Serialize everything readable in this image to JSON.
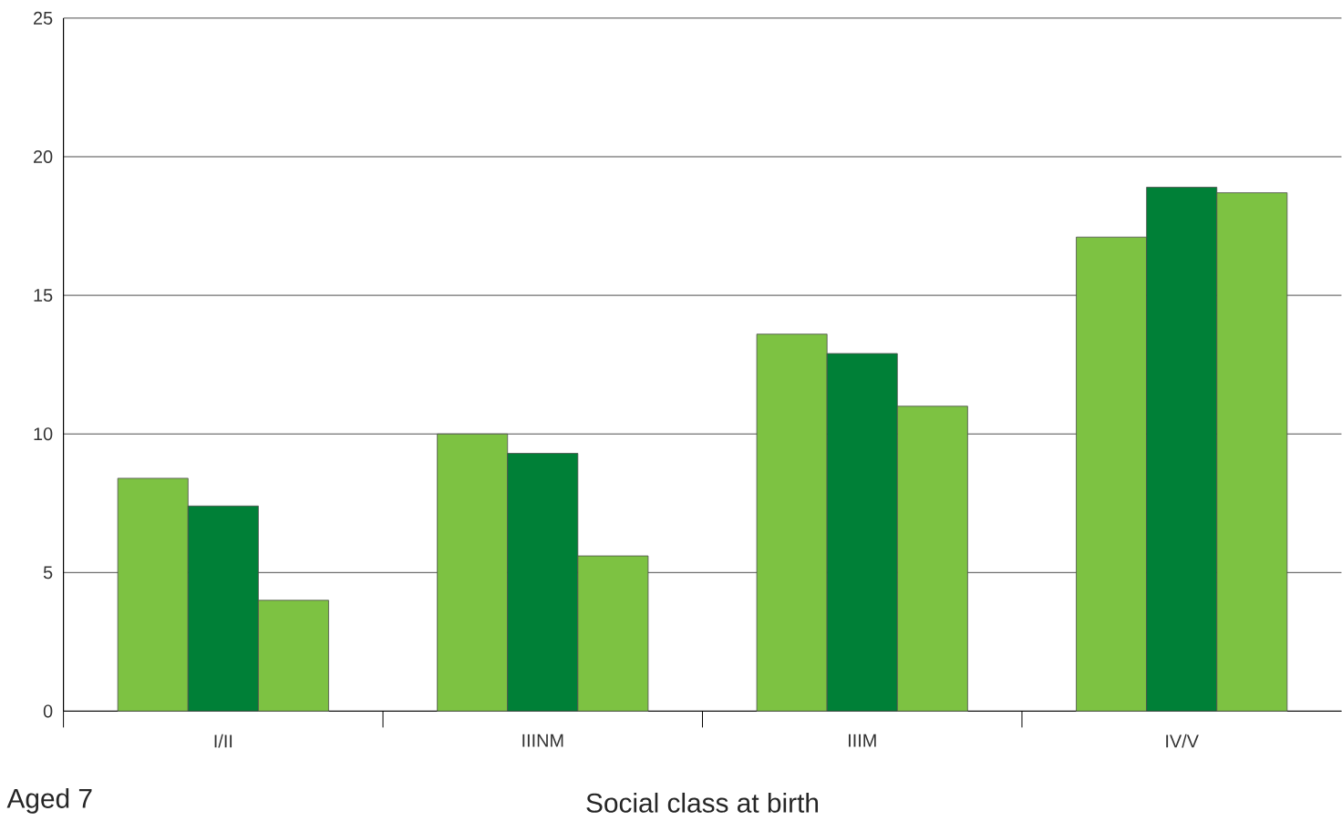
{
  "chart_data": {
    "type": "bar",
    "categories": [
      "I/II",
      "IIINM",
      "IIIM",
      "IV/V"
    ],
    "series": [
      {
        "color": "#7dc242",
        "values": [
          8.4,
          10.0,
          13.6,
          17.1
        ]
      },
      {
        "color": "#008037",
        "values": [
          7.4,
          9.3,
          12.9,
          18.9
        ]
      },
      {
        "color": "#7dc242",
        "values": [
          4.0,
          5.6,
          11.0,
          18.7
        ]
      }
    ],
    "xlabel": "Social class at birth",
    "annotations": [
      "Aged 7"
    ],
    "ylim": [
      0,
      25
    ],
    "yticks": [
      0,
      5,
      10,
      15,
      20,
      25
    ],
    "grid": "y"
  }
}
